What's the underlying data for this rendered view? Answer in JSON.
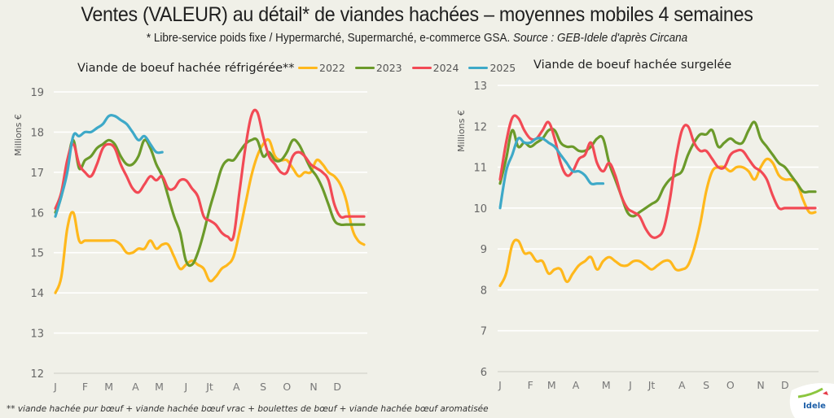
{
  "header": {
    "title": "Ventes (VALEUR) au détail* de viandes hachées – moyennes mobiles 4 semaines",
    "subtitle_plain": "* Libre-service poids fixe / Hypermarché, Supermarché, e-commerce GSA. ",
    "subtitle_source": "Source : GEB-Idele d'après Circana"
  },
  "legend": [
    {
      "label": "2022",
      "color": "#ffb81c"
    },
    {
      "label": "2023",
      "color": "#6b9a2a"
    },
    {
      "label": "2024",
      "color": "#f24a55"
    },
    {
      "label": "2025",
      "color": "#3ea9c8"
    }
  ],
  "footnote": "** viande hachée pur bœuf + viande hachée bœuf vrac + boulettes de bœuf + viande hachée bœuf aromatisée",
  "logo_text": "Idele",
  "chart_data": [
    {
      "type": "line",
      "title": "Viande de boeuf hachée réfrigérée**",
      "ylabel": "Millions €",
      "xlabel": "",
      "ylim": [
        12,
        19
      ],
      "yticks": [
        12,
        13,
        14,
        15,
        16,
        17,
        18,
        19
      ],
      "grid": true,
      "legend_position": "top",
      "x_unit": "week",
      "xlim": [
        0,
        52
      ],
      "xticks": [
        {
          "label": "J",
          "week": 0
        },
        {
          "label": "F",
          "week": 5
        },
        {
          "label": "M",
          "week": 9
        },
        {
          "label": "A",
          "week": 13.5
        },
        {
          "label": "M",
          "week": 17.5
        },
        {
          "label": "J",
          "week": 22
        },
        {
          "label": "Jt",
          "week": 26
        },
        {
          "label": "A",
          "week": 30.5
        },
        {
          "label": "S",
          "week": 35
        },
        {
          "label": "O",
          "week": 39
        },
        {
          "label": "N",
          "week": 43.5
        },
        {
          "label": "D",
          "week": 47.5
        }
      ],
      "series": [
        {
          "name": "2022",
          "x": [
            0,
            1,
            2,
            3,
            4,
            5,
            6,
            7,
            8,
            9,
            10,
            11,
            12,
            13,
            14,
            15,
            16,
            17,
            18,
            19,
            20,
            21,
            22,
            23,
            24,
            25,
            26,
            27,
            28,
            29,
            30,
            31,
            32,
            33,
            34,
            35,
            36,
            37,
            38,
            39,
            40,
            41,
            42,
            43,
            44,
            45,
            46,
            47,
            48,
            49,
            50,
            51,
            52
          ],
          "values": [
            14.0,
            14.4,
            15.6,
            16.0,
            15.3,
            15.3,
            15.3,
            15.3,
            15.3,
            15.3,
            15.3,
            15.2,
            15.0,
            15.0,
            15.1,
            15.1,
            15.3,
            15.1,
            15.2,
            15.2,
            14.9,
            14.6,
            14.7,
            14.8,
            14.7,
            14.6,
            14.3,
            14.4,
            14.6,
            14.7,
            14.9,
            15.5,
            16.2,
            16.9,
            17.4,
            17.7,
            17.8,
            17.4,
            17.3,
            17.3,
            17.1,
            16.9,
            17.0,
            17.0,
            17.3,
            17.2,
            17.0,
            16.9,
            16.7,
            16.3,
            15.6,
            15.3,
            15.2
          ]
        },
        {
          "name": "2023",
          "x": [
            0,
            1,
            2,
            3,
            4,
            5,
            6,
            7,
            8,
            9,
            10,
            11,
            12,
            13,
            14,
            15,
            16,
            17,
            18,
            19,
            20,
            21,
            22,
            23,
            24,
            25,
            26,
            27,
            28,
            29,
            30,
            31,
            32,
            33,
            34,
            35,
            36,
            37,
            38,
            39,
            40,
            41,
            42,
            43,
            44,
            45,
            46,
            47,
            48,
            49,
            50,
            51,
            52
          ],
          "values": [
            16.0,
            16.4,
            17.2,
            17.8,
            17.1,
            17.3,
            17.4,
            17.6,
            17.7,
            17.8,
            17.7,
            17.4,
            17.2,
            17.2,
            17.4,
            17.8,
            17.6,
            17.2,
            16.9,
            16.4,
            15.9,
            15.5,
            14.8,
            14.7,
            15.0,
            15.5,
            16.1,
            16.6,
            17.1,
            17.3,
            17.3,
            17.5,
            17.7,
            17.8,
            17.8,
            17.4,
            17.5,
            17.3,
            17.3,
            17.5,
            17.8,
            17.7,
            17.4,
            17.1,
            16.9,
            16.6,
            16.2,
            15.8,
            15.7,
            15.7,
            15.7,
            15.7,
            15.7
          ]
        },
        {
          "name": "2024",
          "x": [
            0,
            1,
            2,
            3,
            4,
            5,
            6,
            7,
            8,
            9,
            10,
            11,
            12,
            13,
            14,
            15,
            16,
            17,
            18,
            19,
            20,
            21,
            22,
            23,
            24,
            25,
            26,
            27,
            28,
            29,
            30,
            31,
            32,
            33,
            34,
            35,
            36,
            37,
            38,
            39,
            40,
            41,
            42,
            43,
            44,
            45,
            46,
            47,
            48,
            49,
            50,
            51,
            52
          ],
          "values": [
            16.1,
            16.5,
            17.3,
            17.7,
            17.2,
            17.0,
            16.9,
            17.2,
            17.6,
            17.7,
            17.6,
            17.2,
            16.9,
            16.6,
            16.5,
            16.7,
            16.9,
            16.8,
            16.9,
            16.6,
            16.6,
            16.8,
            16.8,
            16.6,
            16.4,
            15.9,
            15.8,
            15.7,
            15.5,
            15.4,
            15.4,
            16.5,
            17.6,
            18.4,
            18.5,
            17.9,
            17.4,
            17.2,
            17.0,
            17.0,
            17.4,
            17.5,
            17.4,
            17.2,
            17.1,
            17.0,
            16.8,
            16.2,
            15.9,
            15.9,
            15.9,
            15.9,
            15.9
          ]
        },
        {
          "name": "2025",
          "x": [
            0,
            1,
            2,
            3,
            4,
            5,
            6,
            7,
            8,
            9,
            10,
            11,
            12,
            13,
            14,
            15,
            16,
            17,
            18
          ],
          "values": [
            15.9,
            16.4,
            17.0,
            17.9,
            17.9,
            18.0,
            18.0,
            18.1,
            18.2,
            18.4,
            18.4,
            18.3,
            18.2,
            18.0,
            17.8,
            17.9,
            17.7,
            17.5,
            17.5
          ]
        }
      ]
    },
    {
      "type": "line",
      "title": "Viande de boeuf hachée surgelée",
      "ylabel": "Millions €",
      "xlabel": "",
      "ylim": [
        6,
        13
      ],
      "yticks": [
        6,
        7,
        8,
        9,
        10,
        11,
        12,
        13
      ],
      "grid": true,
      "legend_position": "top",
      "x_unit": "week",
      "xlim": [
        0,
        52
      ],
      "xticks": [
        {
          "label": "J",
          "week": 0
        },
        {
          "label": "F",
          "week": 5
        },
        {
          "label": "M",
          "week": 8.5
        },
        {
          "label": "A",
          "week": 12.5
        },
        {
          "label": "M",
          "week": 17.5
        },
        {
          "label": "J",
          "week": 21.5
        },
        {
          "label": "Jt",
          "week": 25
        },
        {
          "label": "A",
          "week": 30
        },
        {
          "label": "S",
          "week": 34
        },
        {
          "label": "O",
          "week": 38
        },
        {
          "label": "N",
          "week": 43
        },
        {
          "label": "D",
          "week": 47
        }
      ],
      "series": [
        {
          "name": "2022",
          "x": [
            0,
            1,
            2,
            3,
            4,
            5,
            6,
            7,
            8,
            9,
            10,
            11,
            12,
            13,
            14,
            15,
            16,
            17,
            18,
            19,
            20,
            21,
            22,
            23,
            24,
            25,
            26,
            27,
            28,
            29,
            30,
            31,
            32,
            33,
            34,
            35,
            36,
            37,
            38,
            39,
            40,
            41,
            42,
            43,
            44,
            45,
            46,
            47,
            48,
            49,
            50,
            51,
            52
          ],
          "values": [
            8.1,
            8.4,
            9.1,
            9.2,
            8.9,
            8.9,
            8.7,
            8.7,
            8.4,
            8.5,
            8.5,
            8.2,
            8.4,
            8.6,
            8.7,
            8.8,
            8.5,
            8.7,
            8.8,
            8.7,
            8.6,
            8.6,
            8.7,
            8.7,
            8.6,
            8.5,
            8.6,
            8.7,
            8.7,
            8.5,
            8.5,
            8.6,
            9.0,
            9.6,
            10.4,
            10.9,
            11.0,
            11.0,
            10.9,
            11.0,
            11.0,
            10.9,
            10.7,
            11.0,
            11.2,
            11.1,
            10.8,
            10.7,
            10.7,
            10.6,
            10.2,
            9.9,
            9.9
          ]
        },
        {
          "name": "2023",
          "x": [
            0,
            1,
            2,
            3,
            4,
            5,
            6,
            7,
            8,
            9,
            10,
            11,
            12,
            13,
            14,
            15,
            16,
            17,
            18,
            19,
            20,
            21,
            22,
            23,
            24,
            25,
            26,
            27,
            28,
            29,
            30,
            31,
            32,
            33,
            34,
            35,
            36,
            37,
            38,
            39,
            40,
            41,
            42,
            43,
            44,
            45,
            46,
            47,
            48,
            49,
            50,
            51,
            52
          ],
          "values": [
            10.6,
            11.2,
            11.9,
            11.5,
            11.6,
            11.5,
            11.6,
            11.7,
            11.9,
            11.9,
            11.6,
            11.5,
            11.5,
            11.4,
            11.4,
            11.5,
            11.7,
            11.7,
            11.1,
            10.7,
            10.3,
            9.9,
            9.8,
            9.9,
            10.0,
            10.1,
            10.2,
            10.5,
            10.7,
            10.8,
            10.9,
            11.3,
            11.6,
            11.8,
            11.8,
            11.9,
            11.5,
            11.6,
            11.7,
            11.6,
            11.6,
            11.9,
            12.1,
            11.7,
            11.5,
            11.3,
            11.1,
            11.0,
            10.8,
            10.6,
            10.4,
            10.4,
            10.4
          ]
        },
        {
          "name": "2024",
          "x": [
            0,
            1,
            2,
            3,
            4,
            5,
            6,
            7,
            8,
            9,
            10,
            11,
            12,
            13,
            14,
            15,
            16,
            17,
            18,
            19,
            20,
            21,
            22,
            23,
            24,
            25,
            26,
            27,
            28,
            29,
            30,
            31,
            32,
            33,
            34,
            35,
            36,
            37,
            38,
            39,
            40,
            41,
            42,
            43,
            44,
            45,
            46,
            47,
            48,
            49,
            50,
            51,
            52
          ],
          "values": [
            10.7,
            11.6,
            12.2,
            12.2,
            11.9,
            11.7,
            11.7,
            11.9,
            12.1,
            11.7,
            11.1,
            10.8,
            10.9,
            11.2,
            11.3,
            11.6,
            11.1,
            10.9,
            11.1,
            10.8,
            10.3,
            10.0,
            9.9,
            9.8,
            9.5,
            9.3,
            9.3,
            9.5,
            10.2,
            11.2,
            11.9,
            12.0,
            11.6,
            11.4,
            11.4,
            11.2,
            11.0,
            11.0,
            11.3,
            11.4,
            11.4,
            11.2,
            11.0,
            10.9,
            10.7,
            10.3,
            10.0,
            10.0,
            10.0,
            10.0,
            10.0,
            10.0,
            10.0
          ]
        },
        {
          "name": "2025",
          "x": [
            0,
            1,
            2,
            3,
            4,
            5,
            6,
            7,
            8,
            9,
            10,
            11,
            12,
            13,
            14,
            15,
            16,
            17
          ],
          "values": [
            10.0,
            10.9,
            11.3,
            11.7,
            11.6,
            11.6,
            11.7,
            11.7,
            11.6,
            11.5,
            11.3,
            11.1,
            10.9,
            10.9,
            10.8,
            10.6,
            10.6,
            10.6
          ]
        }
      ]
    }
  ]
}
